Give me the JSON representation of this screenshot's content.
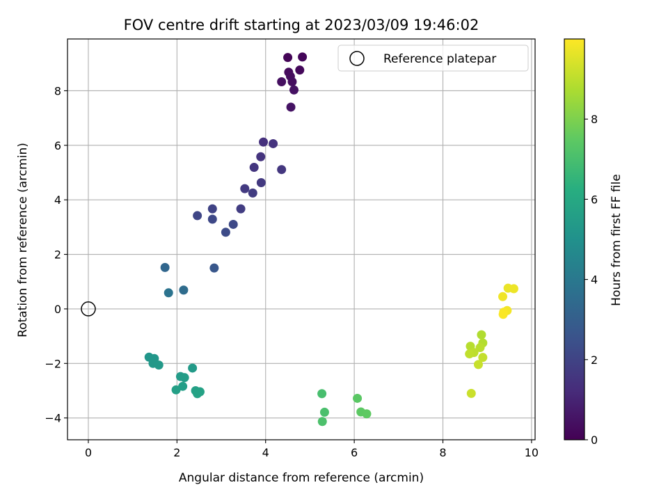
{
  "chart_data": {
    "type": "scatter",
    "title": "FOV centre drift starting at 2023/03/09 19:46:02",
    "xlabel": "Angular distance from reference (arcmin)",
    "ylabel": "Rotation from reference (arcmin)",
    "xlim": [
      -0.47,
      10.08
    ],
    "ylim": [
      -4.8,
      9.9
    ],
    "xticks": [
      0,
      2,
      4,
      6,
      8,
      10
    ],
    "yticks": [
      -4,
      -2,
      0,
      2,
      4,
      6,
      8
    ],
    "grid": true,
    "legend": {
      "placement": "top-right",
      "entries": [
        "Reference platepar"
      ]
    },
    "reference_point": {
      "x": 0,
      "y": 0,
      "label": "Reference platepar"
    },
    "colormap": "viridis",
    "colorbar": {
      "label": "Hours from first FF file",
      "range": [
        0,
        10
      ],
      "ticks": [
        0,
        2,
        4,
        6,
        8
      ]
    },
    "points": [
      {
        "x": 4.5,
        "y": 9.22,
        "c": 0.1
      },
      {
        "x": 4.83,
        "y": 9.24,
        "c": 0.15
      },
      {
        "x": 4.77,
        "y": 8.76,
        "c": 0.2
      },
      {
        "x": 4.52,
        "y": 8.68,
        "c": 0.25
      },
      {
        "x": 4.56,
        "y": 8.53,
        "c": 0.3
      },
      {
        "x": 4.6,
        "y": 8.33,
        "c": 0.35
      },
      {
        "x": 4.36,
        "y": 8.33,
        "c": 0.4
      },
      {
        "x": 4.64,
        "y": 8.03,
        "c": 0.45
      },
      {
        "x": 4.57,
        "y": 7.4,
        "c": 0.5
      },
      {
        "x": 3.95,
        "y": 6.12,
        "c": 1.4
      },
      {
        "x": 4.17,
        "y": 6.06,
        "c": 1.45
      },
      {
        "x": 3.89,
        "y": 5.58,
        "c": 1.5
      },
      {
        "x": 3.74,
        "y": 5.19,
        "c": 1.55
      },
      {
        "x": 4.36,
        "y": 5.11,
        "c": 1.6
      },
      {
        "x": 3.9,
        "y": 4.63,
        "c": 1.65
      },
      {
        "x": 3.53,
        "y": 4.41,
        "c": 1.7
      },
      {
        "x": 3.71,
        "y": 4.25,
        "c": 1.75
      },
      {
        "x": 3.44,
        "y": 3.67,
        "c": 1.8
      },
      {
        "x": 2.8,
        "y": 3.67,
        "c": 2.0
      },
      {
        "x": 2.46,
        "y": 3.42,
        "c": 2.1
      },
      {
        "x": 2.8,
        "y": 3.29,
        "c": 2.15
      },
      {
        "x": 3.27,
        "y": 3.1,
        "c": 2.2
      },
      {
        "x": 3.1,
        "y": 2.81,
        "c": 2.25
      },
      {
        "x": 2.84,
        "y": 1.5,
        "c": 2.7
      },
      {
        "x": 1.73,
        "y": 1.52,
        "c": 3.3
      },
      {
        "x": 2.15,
        "y": 0.69,
        "c": 3.5
      },
      {
        "x": 1.81,
        "y": 0.59,
        "c": 3.8
      },
      {
        "x": 1.37,
        "y": -1.77,
        "c": 5.2
      },
      {
        "x": 1.49,
        "y": -1.82,
        "c": 5.25
      },
      {
        "x": 1.46,
        "y": -2.0,
        "c": 5.3
      },
      {
        "x": 1.59,
        "y": -2.06,
        "c": 5.35
      },
      {
        "x": 2.35,
        "y": -2.17,
        "c": 5.4
      },
      {
        "x": 2.08,
        "y": -2.48,
        "c": 5.45
      },
      {
        "x": 2.17,
        "y": -2.52,
        "c": 5.5
      },
      {
        "x": 2.13,
        "y": -2.84,
        "c": 5.55
      },
      {
        "x": 1.98,
        "y": -2.97,
        "c": 5.6
      },
      {
        "x": 2.42,
        "y": -3.0,
        "c": 5.65
      },
      {
        "x": 2.52,
        "y": -3.04,
        "c": 5.7
      },
      {
        "x": 2.46,
        "y": -3.11,
        "c": 5.75
      },
      {
        "x": 5.27,
        "y": -3.11,
        "c": 7.0
      },
      {
        "x": 5.33,
        "y": -3.79,
        "c": 7.05
      },
      {
        "x": 5.28,
        "y": -4.13,
        "c": 7.1
      },
      {
        "x": 6.07,
        "y": -3.28,
        "c": 7.4
      },
      {
        "x": 6.15,
        "y": -3.78,
        "c": 7.45
      },
      {
        "x": 6.28,
        "y": -3.85,
        "c": 7.5
      },
      {
        "x": 8.87,
        "y": -0.95,
        "c": 8.8
      },
      {
        "x": 8.9,
        "y": -1.25,
        "c": 8.85
      },
      {
        "x": 8.62,
        "y": -1.37,
        "c": 8.9
      },
      {
        "x": 8.84,
        "y": -1.42,
        "c": 8.95
      },
      {
        "x": 8.7,
        "y": -1.6,
        "c": 9.0
      },
      {
        "x": 8.6,
        "y": -1.65,
        "c": 9.05
      },
      {
        "x": 8.9,
        "y": -1.78,
        "c": 9.1
      },
      {
        "x": 8.8,
        "y": -2.04,
        "c": 9.15
      },
      {
        "x": 8.64,
        "y": -3.1,
        "c": 9.2
      },
      {
        "x": 9.47,
        "y": 0.76,
        "c": 9.7
      },
      {
        "x": 9.6,
        "y": 0.74,
        "c": 9.75
      },
      {
        "x": 9.35,
        "y": 0.45,
        "c": 9.8
      },
      {
        "x": 9.45,
        "y": -0.06,
        "c": 9.85
      },
      {
        "x": 9.37,
        "y": -0.12,
        "c": 9.9
      },
      {
        "x": 9.36,
        "y": -0.2,
        "c": 9.95
      }
    ]
  }
}
